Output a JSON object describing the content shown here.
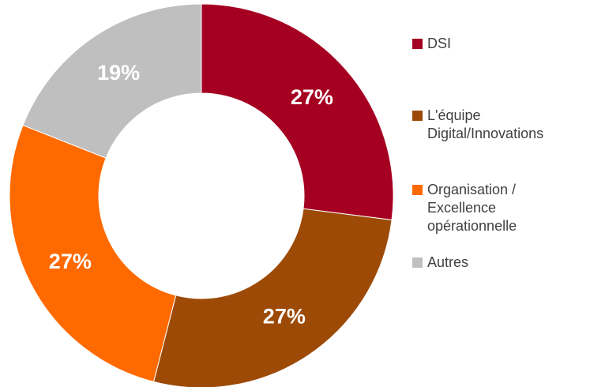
{
  "chart_data": {
    "type": "pie",
    "categories": [
      "DSI",
      "L'équipe Digital/Innovations",
      "Organisation / Excellence opérationnelle",
      "Autres"
    ],
    "values": [
      27,
      27,
      27,
      19
    ],
    "value_labels": [
      "27%",
      "27%",
      "27%",
      "19%"
    ],
    "colors": [
      "#a50021",
      "#9c4a06",
      "#ff6a00",
      "#bfbfbf"
    ],
    "legend": "right"
  }
}
